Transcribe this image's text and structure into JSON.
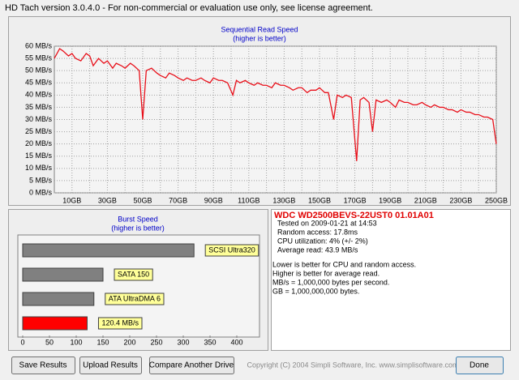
{
  "window": {
    "title": "HD Tach version 3.0.4.0  - For non-commercial or evaluation use only, see license agreement."
  },
  "read_chart": {
    "type": "line",
    "title": "Sequential Read Speed",
    "subtitle": "(higher is better)",
    "color": "#e8101a",
    "grid": true,
    "x": [
      0,
      3,
      5,
      8,
      10,
      12,
      15,
      18,
      20,
      22,
      25,
      28,
      30,
      33,
      35,
      38,
      40,
      43,
      45,
      48,
      50,
      52,
      55,
      58,
      60,
      63,
      65,
      68,
      70,
      73,
      75,
      78,
      80,
      83,
      85,
      88,
      90,
      93,
      95,
      98,
      101,
      103,
      105,
      108,
      110,
      113,
      115,
      118,
      120,
      123,
      125,
      128,
      130,
      133,
      135,
      138,
      140,
      143,
      145,
      148,
      150,
      153,
      155,
      158,
      160,
      163,
      165,
      168,
      171,
      173,
      175,
      178,
      180,
      182,
      185,
      188,
      190,
      193,
      195,
      198,
      200,
      203,
      205,
      208,
      210,
      213,
      215,
      218,
      220,
      223,
      225,
      228,
      230,
      233,
      235,
      238,
      240,
      243,
      245,
      248,
      250
    ],
    "values": [
      55,
      59,
      58,
      56,
      57,
      55,
      54,
      57,
      56,
      52,
      55,
      53,
      54,
      51,
      53,
      52,
      51,
      53,
      52,
      50,
      30,
      50,
      51,
      49,
      48,
      47,
      49,
      48,
      47,
      46,
      47,
      46,
      46,
      47,
      46,
      45,
      47,
      46,
      46,
      45,
      40,
      46,
      45,
      46,
      45,
      44,
      45,
      44,
      44,
      43,
      45,
      44,
      44,
      43,
      42,
      43,
      43,
      41,
      42,
      42,
      43,
      41,
      41,
      30,
      40,
      39,
      40,
      39,
      13,
      38,
      39,
      37,
      25,
      38,
      37,
      38,
      37,
      35,
      38,
      37,
      37,
      36,
      36,
      37,
      36,
      35,
      36,
      35,
      35,
      34,
      34,
      33,
      34,
      33,
      33,
      32,
      32,
      31,
      31,
      30,
      20
    ],
    "xlim": [
      0,
      250
    ],
    "xticks": [
      {
        "value": 10,
        "label": "10GB"
      },
      {
        "value": 30,
        "label": "30GB"
      },
      {
        "value": 50,
        "label": "50GB"
      },
      {
        "value": 70,
        "label": "70GB"
      },
      {
        "value": 90,
        "label": "90GB"
      },
      {
        "value": 110,
        "label": "110GB"
      },
      {
        "value": 130,
        "label": "130GB"
      },
      {
        "value": 150,
        "label": "150GB"
      },
      {
        "value": 170,
        "label": "170GB"
      },
      {
        "value": 190,
        "label": "190GB"
      },
      {
        "value": 210,
        "label": "210GB"
      },
      {
        "value": 230,
        "label": "230GB"
      },
      {
        "value": 250,
        "label": "250GB"
      }
    ],
    "xminor": [
      20,
      40,
      60,
      80,
      100,
      120,
      140,
      160,
      180,
      200,
      220,
      240
    ],
    "ylim": [
      0,
      60
    ],
    "yticks": [
      {
        "value": 0,
        "label": "0 MB/s"
      },
      {
        "value": 5,
        "label": "5 MB/s"
      },
      {
        "value": 10,
        "label": "10 MB/s"
      },
      {
        "value": 15,
        "label": "15 MB/s"
      },
      {
        "value": 20,
        "label": "20 MB/s"
      },
      {
        "value": 25,
        "label": "25 MB/s"
      },
      {
        "value": 30,
        "label": "30 MB/s"
      },
      {
        "value": 35,
        "label": "35 MB/s"
      },
      {
        "value": 40,
        "label": "40 MB/s"
      },
      {
        "value": 45,
        "label": "45 MB/s"
      },
      {
        "value": 50,
        "label": "50 MB/s"
      },
      {
        "value": 55,
        "label": "55 MB/s"
      },
      {
        "value": 60,
        "label": "60 MB/s"
      }
    ]
  },
  "burst_chart": {
    "type": "bar",
    "title": "Burst Speed",
    "subtitle": "(higher is better)",
    "categories": [
      "SCSI Ultra320",
      "SATA 150",
      "ATA UltraDMA 6",
      null
    ],
    "values": [
      320,
      150,
      133,
      120.4
    ],
    "value_labels": [
      null,
      null,
      null,
      "120.4 MB/s"
    ],
    "colors": [
      "#808080",
      "#808080",
      "#808080",
      "#ff0000"
    ],
    "xlim": [
      0,
      400
    ],
    "xticks": [
      0,
      50,
      100,
      150,
      200,
      250,
      300,
      350,
      400
    ]
  },
  "info": {
    "drive": "WDC WD2500BEVS-22UST0 01.01A01",
    "results": [
      "Tested on 2009-01-21 at 14:53",
      "Random access: 17.8ms",
      "CPU utilization: 4% (+/- 2%)",
      "Average read: 43.9 MB/s"
    ],
    "notes": [
      "Lower is better for CPU and random access.",
      "Higher is better for average read.",
      "MB/s = 1,000,000 bytes per second.",
      "GB = 1,000,000,000 bytes."
    ]
  },
  "buttons": [
    "Save Results",
    "Upload Results",
    "Compare Another Drive",
    "Done"
  ],
  "copyright": "Copyright (C) 2004 Simpli Software, Inc. www.simplisoftware.com"
}
